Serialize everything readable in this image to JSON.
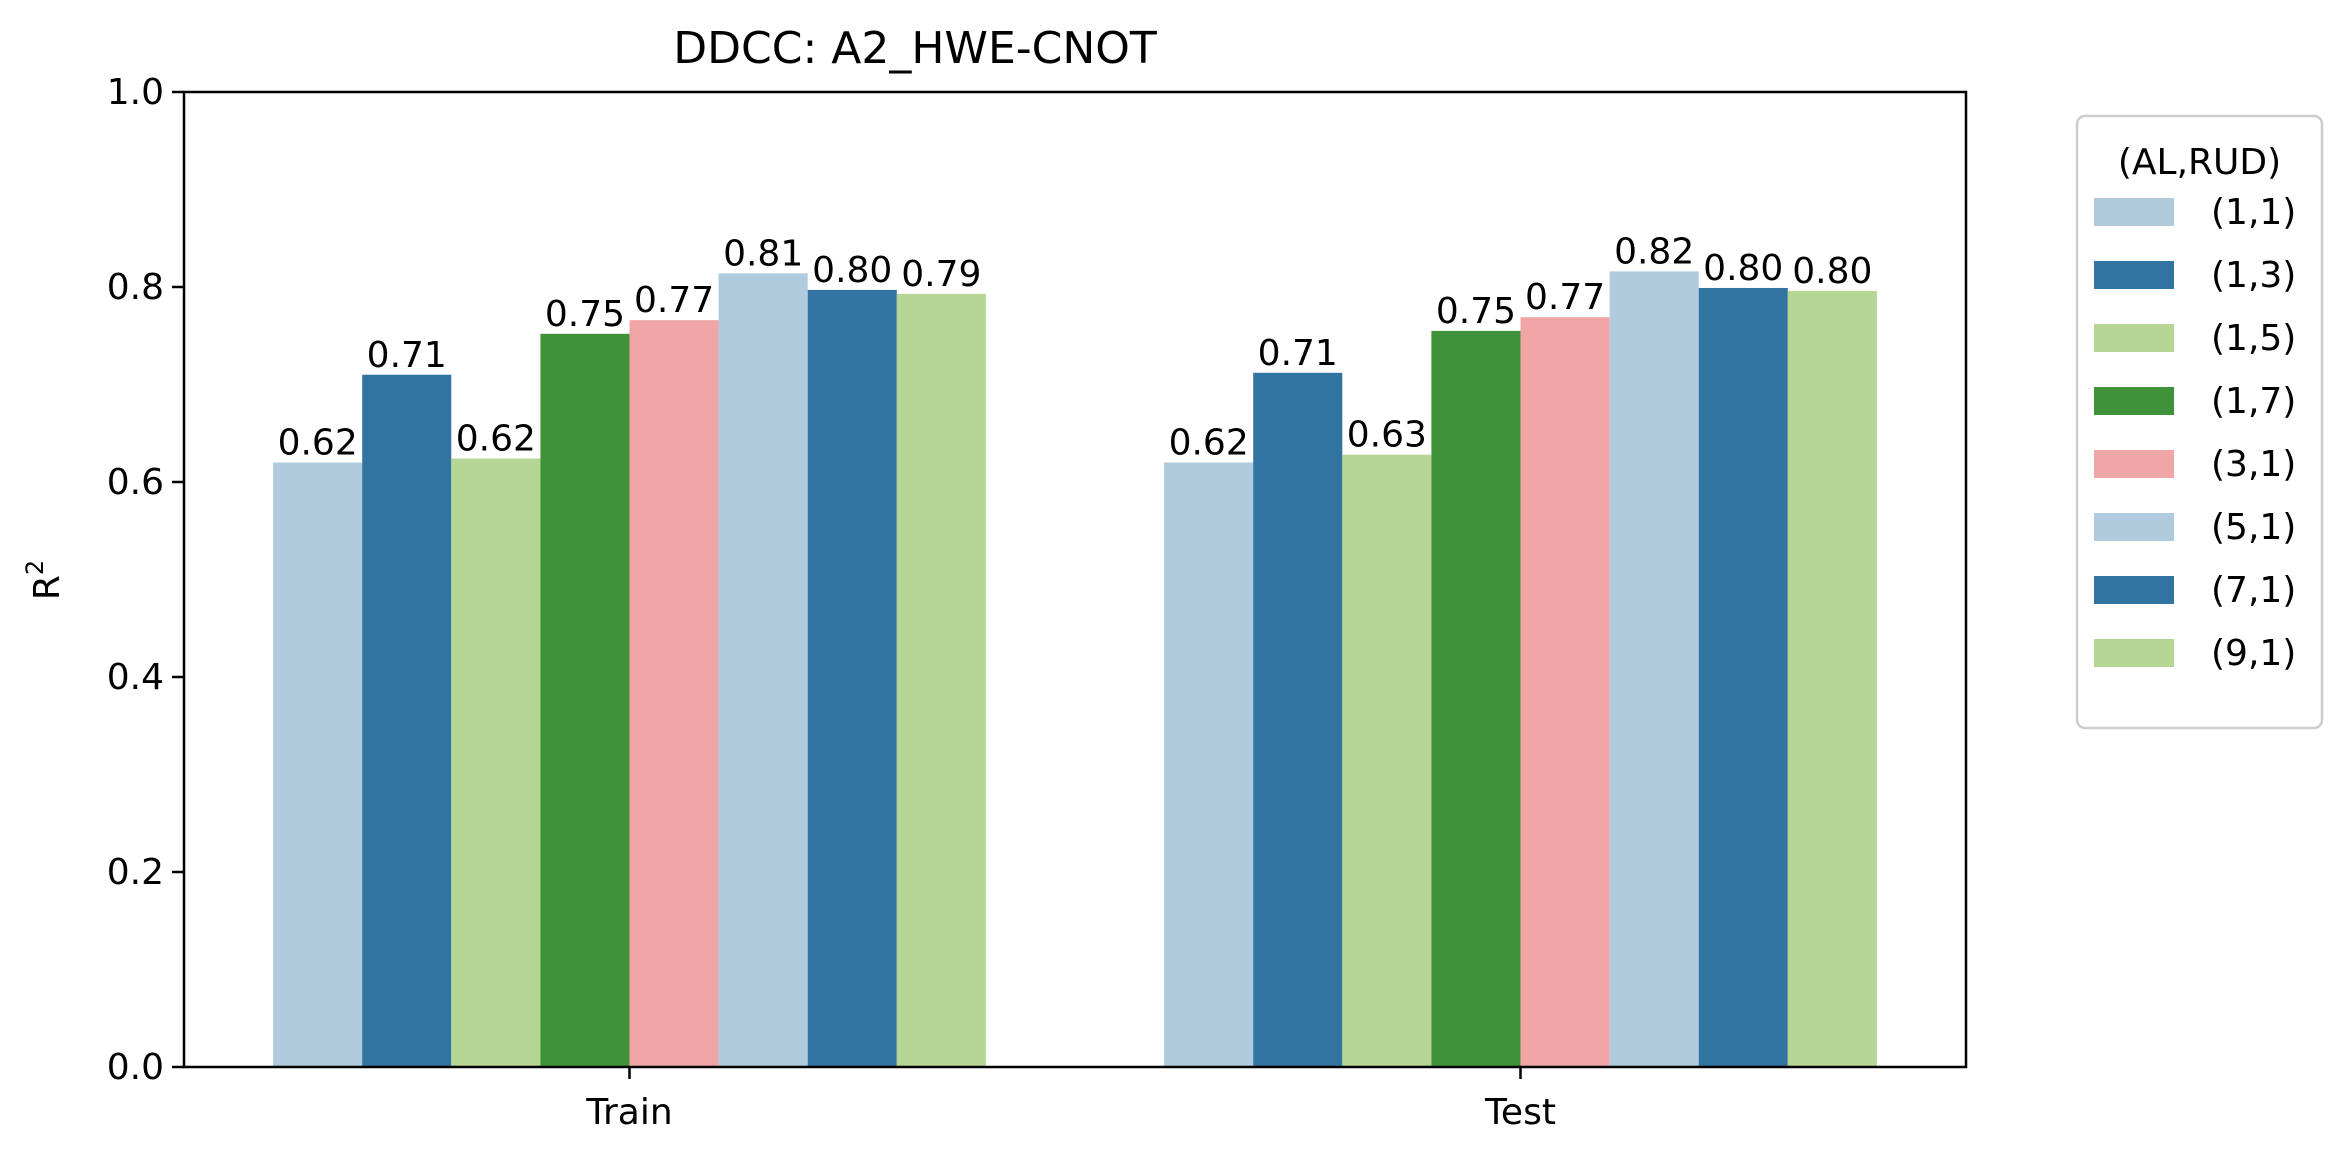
{
  "chart_data": {
    "type": "bar",
    "title": "DDCC: A2_HWE-CNOT",
    "xlabel": "",
    "ylabel": "R",
    "ylabel_superscript": "2",
    "categories": [
      "Train",
      "Test"
    ],
    "ylim": [
      0,
      1.0
    ],
    "yticks": [
      "0.0",
      "0.2",
      "0.4",
      "0.6",
      "0.8",
      "1.0"
    ],
    "grid": false,
    "legend": {
      "title": "(AL,RUD)",
      "placement": "outside-right"
    },
    "series": [
      {
        "name": "(1,1)",
        "color": "#afcbdd",
        "values": [
          0.62,
          0.62
        ],
        "labels": [
          "0.62",
          "0.62"
        ]
      },
      {
        "name": "(1,3)",
        "color": "#3274a1",
        "values": [
          0.71,
          0.712
        ],
        "labels": [
          "0.71",
          "0.71"
        ]
      },
      {
        "name": "(1,5)",
        "color": "#b5d695",
        "values": [
          0.624,
          0.628
        ],
        "labels": [
          "0.62",
          "0.63"
        ]
      },
      {
        "name": "(1,7)",
        "color": "#3f923a",
        "values": [
          0.752,
          0.755
        ],
        "labels": [
          "0.75",
          "0.75"
        ]
      },
      {
        "name": "(3,1)",
        "color": "#f0a6a6",
        "values": [
          0.766,
          0.769
        ],
        "labels": [
          "0.77",
          "0.77"
        ]
      },
      {
        "name": "(5,1)",
        "color": "#afcbdd",
        "values": [
          0.814,
          0.816
        ],
        "labels": [
          "0.81",
          "0.82"
        ]
      },
      {
        "name": "(7,1)",
        "color": "#3274a1",
        "values": [
          0.797,
          0.799
        ],
        "labels": [
          "0.80",
          "0.80"
        ]
      },
      {
        "name": "(9,1)",
        "color": "#b5d695",
        "values": [
          0.793,
          0.796
        ],
        "labels": [
          "0.79",
          "0.80"
        ]
      }
    ]
  }
}
